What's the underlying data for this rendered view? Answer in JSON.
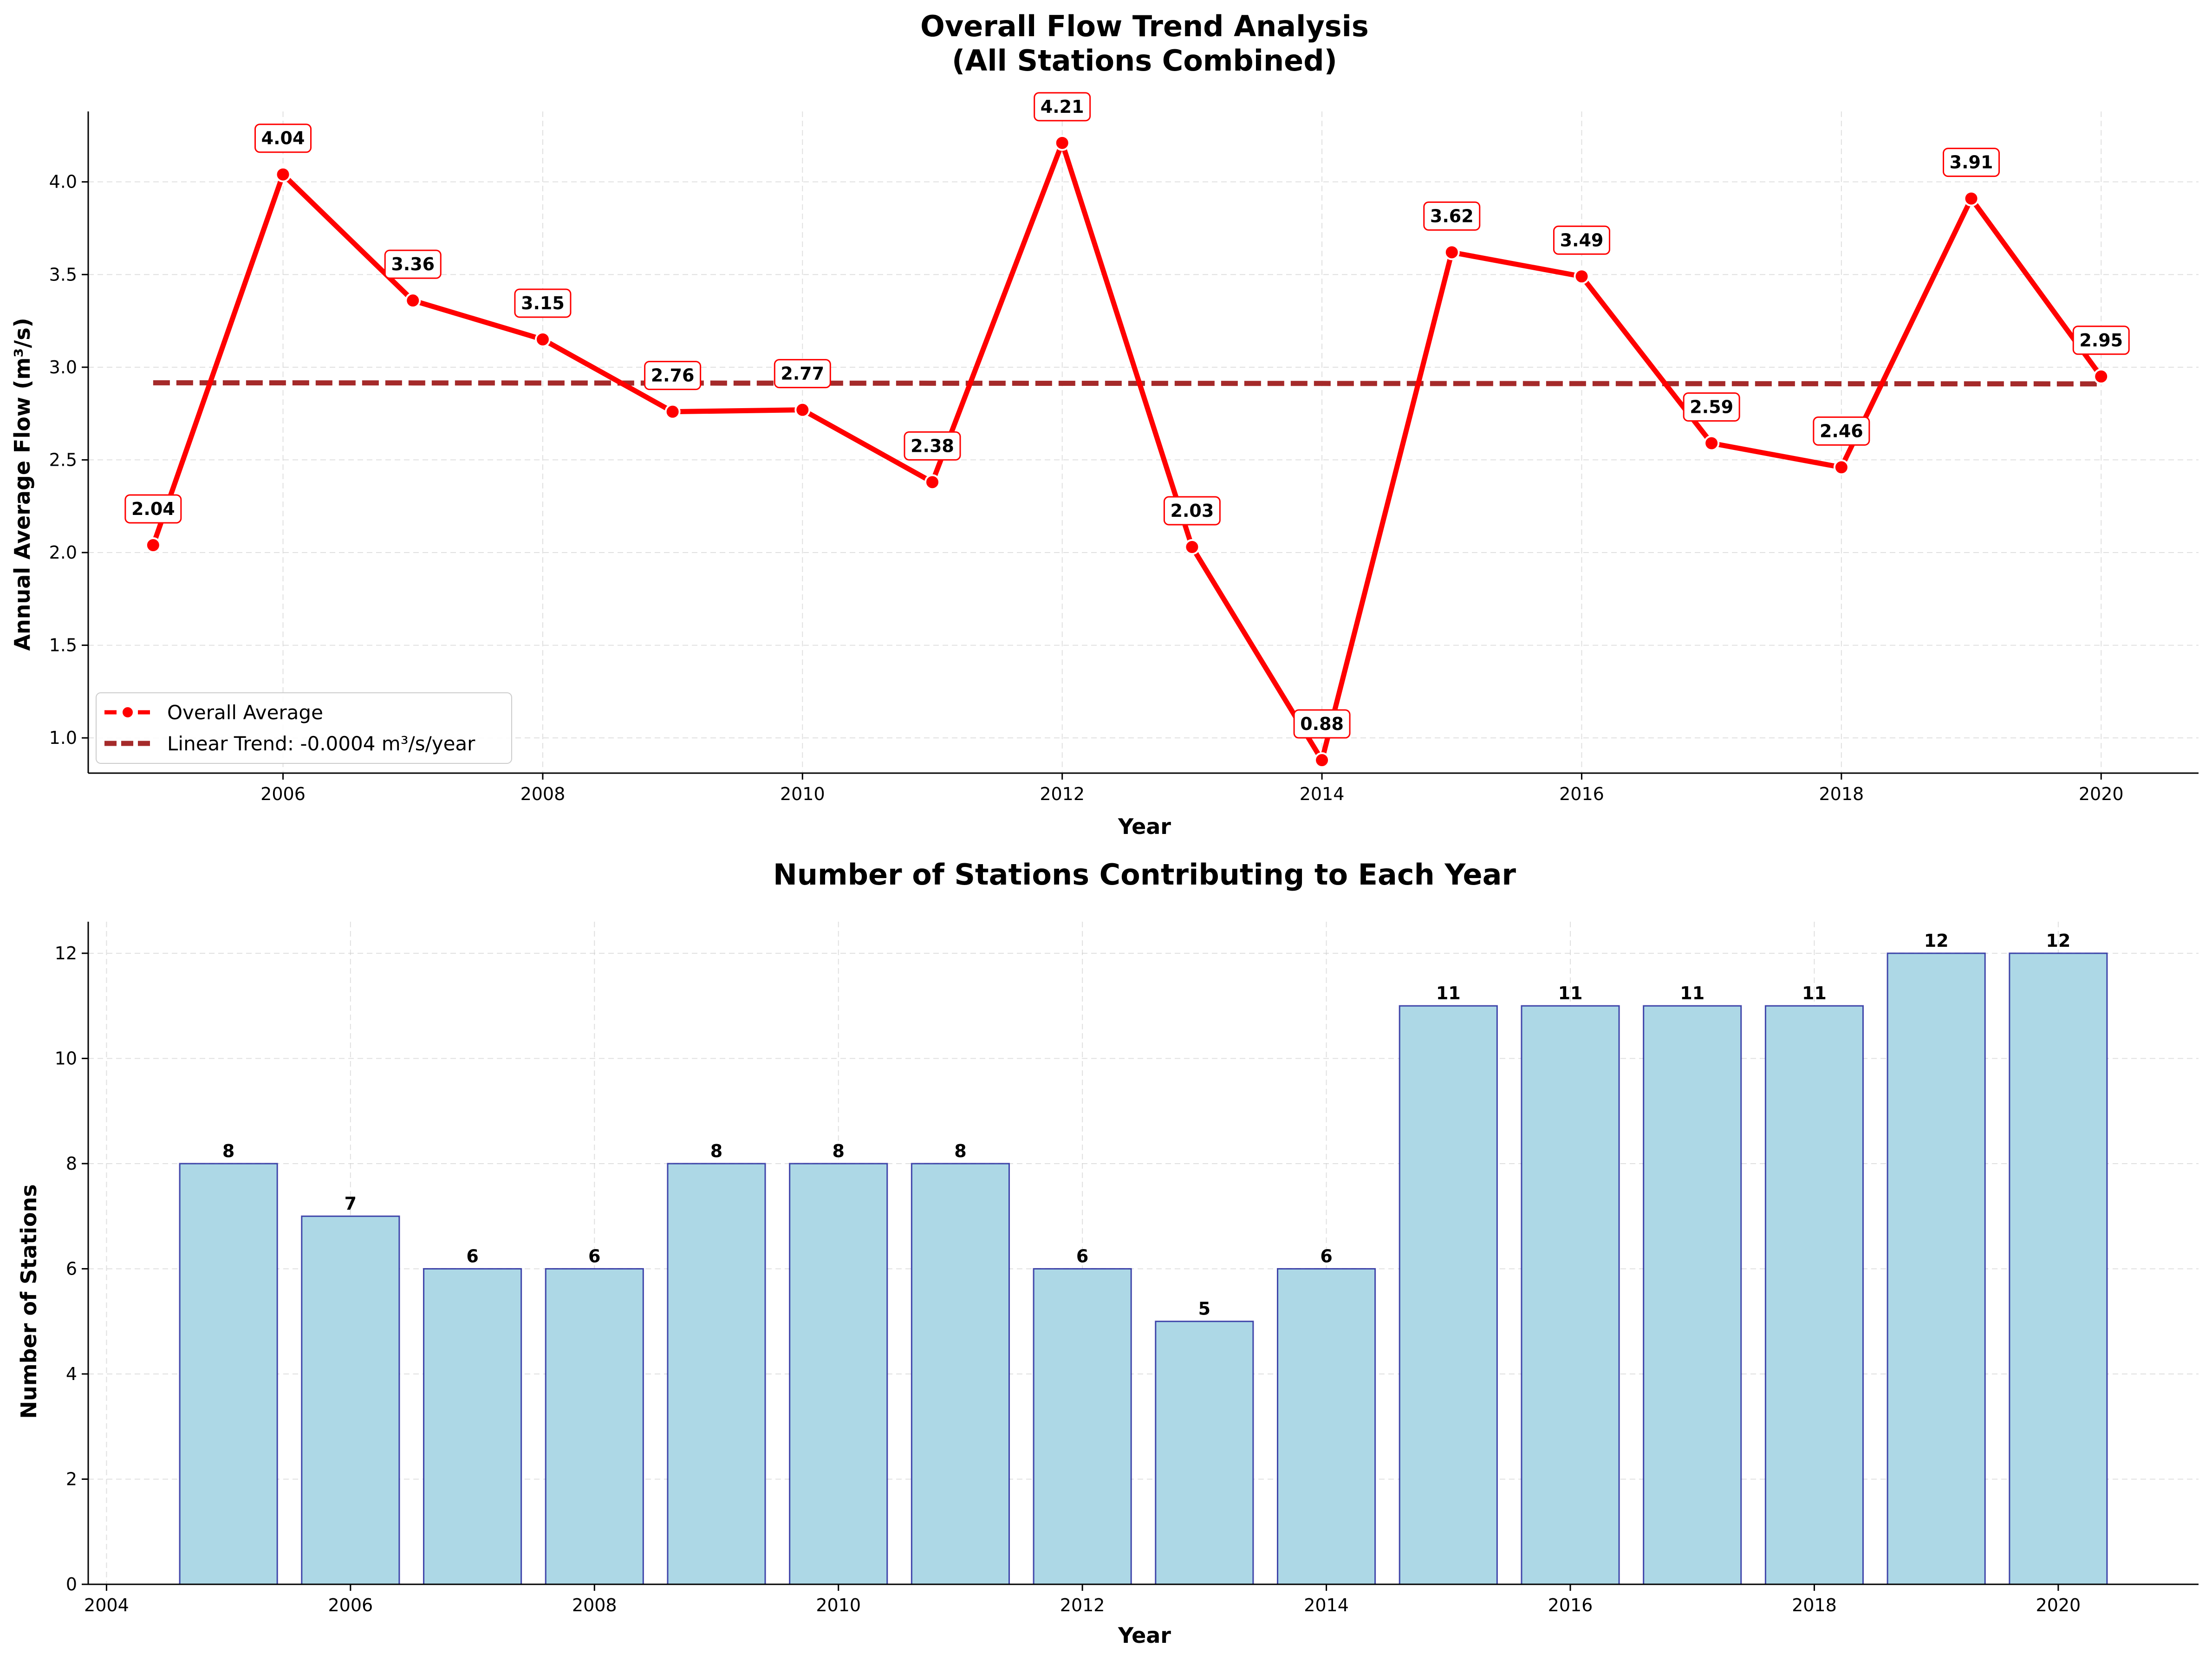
{
  "chart_data": [
    {
      "type": "line",
      "title": "Overall Flow Trend Analysis",
      "subtitle": "(All Stations Combined)",
      "xlabel": "Year",
      "ylabel": "Annual Average Flow (m³/s)",
      "x": [
        2005,
        2006,
        2007,
        2008,
        2009,
        2010,
        2011,
        2012,
        2013,
        2014,
        2015,
        2016,
        2017,
        2018,
        2019,
        2020
      ],
      "series": [
        {
          "name": "Overall Average",
          "values": [
            2.04,
            4.04,
            3.36,
            3.15,
            2.76,
            2.77,
            2.38,
            4.21,
            2.03,
            0.88,
            3.62,
            3.49,
            2.59,
            2.46,
            3.91,
            2.95
          ],
          "color": "#ff0000"
        },
        {
          "name": "Linear Trend: -0.0004 m³/s/year",
          "values": [
            2.916,
            2.9156,
            2.9152,
            2.9148,
            2.9144,
            2.914,
            2.9136,
            2.9132,
            2.9128,
            2.9124,
            2.912,
            2.9116,
            2.9112,
            2.9108,
            2.9104,
            2.91
          ],
          "color": "#a52a2a"
        }
      ],
      "data_labels": [
        "2.04",
        "4.04",
        "3.36",
        "3.15",
        "2.76",
        "2.77",
        "2.38",
        "4.21",
        "2.03",
        "0.88",
        "3.62",
        "3.49",
        "2.59",
        "2.46",
        "3.91",
        "2.95"
      ],
      "xlim": [
        2004.5,
        2020.75
      ],
      "ylim": [
        0.81,
        4.38
      ],
      "xticks": [
        "2006",
        "2008",
        "2010",
        "2012",
        "2014",
        "2016",
        "2018",
        "2020"
      ],
      "yticks": [
        "1.0",
        "1.5",
        "2.0",
        "2.5",
        "3.0",
        "3.5",
        "4.0"
      ],
      "grid": true,
      "legend_position": "lower-left"
    },
    {
      "type": "bar",
      "title": "Number of Stations Contributing to Each Year",
      "xlabel": "Year",
      "ylabel": "Number of Stations",
      "categories": [
        2005,
        2006,
        2007,
        2008,
        2009,
        2010,
        2011,
        2012,
        2013,
        2014,
        2015,
        2016,
        2017,
        2018,
        2019,
        2020
      ],
      "values": [
        8,
        7,
        6,
        6,
        8,
        8,
        8,
        6,
        5,
        6,
        11,
        11,
        11,
        11,
        12,
        12
      ],
      "bar_color": "#add8e6",
      "edge_color": "#00008b",
      "xlim": [
        2003.85,
        2021.15
      ],
      "ylim": [
        0,
        12.6
      ],
      "xticks": [
        "2004",
        "2006",
        "2008",
        "2010",
        "2012",
        "2014",
        "2016",
        "2018",
        "2020"
      ],
      "yticks": [
        "0",
        "2",
        "4",
        "6",
        "8",
        "10",
        "12"
      ],
      "grid": true
    }
  ]
}
